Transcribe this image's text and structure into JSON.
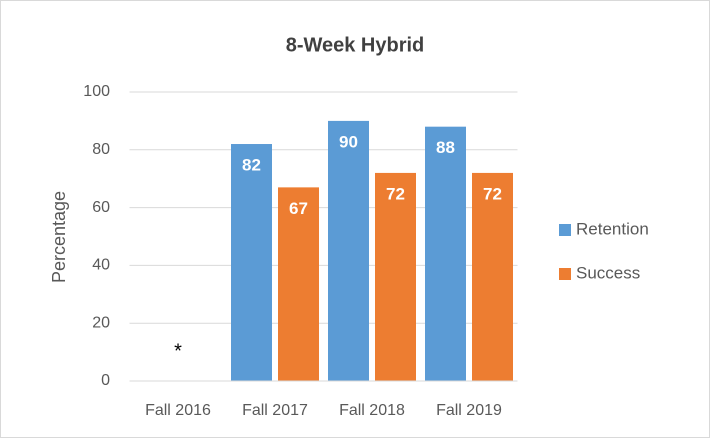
{
  "chart_data": {
    "type": "bar",
    "title": "8-Week Hybrid",
    "y_label": "Percentage",
    "categories": [
      "Fall 2016",
      "Fall 2017",
      "Fall 2018",
      "Fall 2019"
    ],
    "series": [
      {
        "name": "Retention",
        "color": "#5b9bd5",
        "values": [
          null,
          82,
          90,
          88
        ]
      },
      {
        "name": "Success",
        "color": "#ed7d31",
        "values": [
          null,
          67,
          72,
          72
        ]
      }
    ],
    "annotation": "*",
    "ylim": [
      0,
      100
    ],
    "yticks": [
      0,
      20,
      40,
      60,
      80,
      100
    ],
    "grid": true,
    "legend": "right"
  }
}
